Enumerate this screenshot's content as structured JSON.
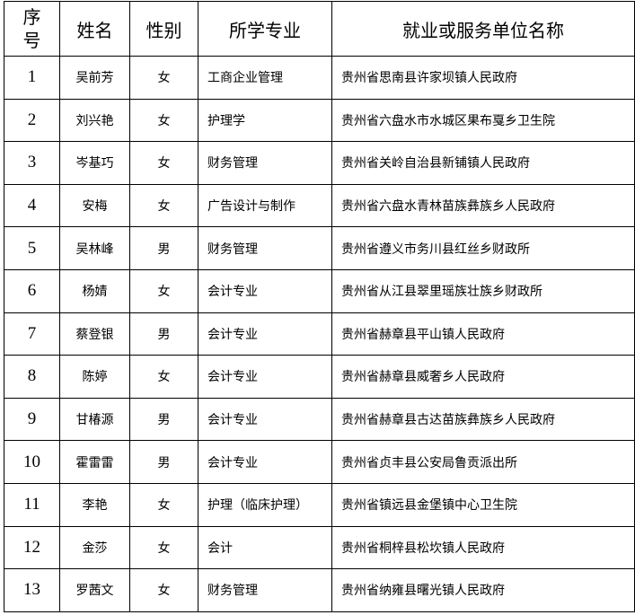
{
  "headers": {
    "no_line1": "序",
    "no_line2": "号",
    "name": "姓名",
    "gender": "性别",
    "major": "所学专业",
    "employer": "就业或服务单位名称"
  },
  "rows": [
    {
      "no": "1",
      "name": "吴前芳",
      "gender": "女",
      "major": "工商企业管理",
      "employer": "贵州省思南县许家坝镇人民政府"
    },
    {
      "no": "2",
      "name": "刘兴艳",
      "gender": "女",
      "major": "护理学",
      "employer": "贵州省六盘水市水城区果布戛乡卫生院"
    },
    {
      "no": "3",
      "name": "岑基巧",
      "gender": "女",
      "major": "财务管理",
      "employer": "贵州省关岭自治县新铺镇人民政府"
    },
    {
      "no": "4",
      "name": "安梅",
      "gender": "女",
      "major": "广告设计与制作",
      "employer": "贵州省六盘水青林苗族彝族乡人民政府"
    },
    {
      "no": "5",
      "name": "吴林峰",
      "gender": "男",
      "major": "财务管理",
      "employer": "贵州省遵义市务川县红丝乡财政所"
    },
    {
      "no": "6",
      "name": "杨婧",
      "gender": "女",
      "major": "会计专业",
      "employer": "贵州省从江县翠里瑶族壮族乡财政所"
    },
    {
      "no": "7",
      "name": "蔡登银",
      "gender": "男",
      "major": "会计专业",
      "employer": "贵州省赫章县平山镇人民政府"
    },
    {
      "no": "8",
      "name": "陈婷",
      "gender": "女",
      "major": "会计专业",
      "employer": "贵州省赫章县威奢乡人民政府"
    },
    {
      "no": "9",
      "name": "甘椿源",
      "gender": "男",
      "major": "会计专业",
      "employer": "贵州省赫章县古达苗族彝族乡人民政府"
    },
    {
      "no": "10",
      "name": "霍雷雷",
      "gender": "男",
      "major": "会计专业",
      "employer": "贵州省贞丰县公安局鲁贡派出所"
    },
    {
      "no": "11",
      "name": "李艳",
      "gender": "女",
      "major": "护理（临床护理）",
      "employer": "贵州省镇远县金堡镇中心卫生院"
    },
    {
      "no": "12",
      "name": "金莎",
      "gender": "女",
      "major": "会计",
      "employer": "贵州省桐梓县松坎镇人民政府"
    },
    {
      "no": "13",
      "name": "罗茜文",
      "gender": "女",
      "major": "财务管理",
      "employer": "贵州省纳雍县曙光镇人民政府"
    }
  ]
}
